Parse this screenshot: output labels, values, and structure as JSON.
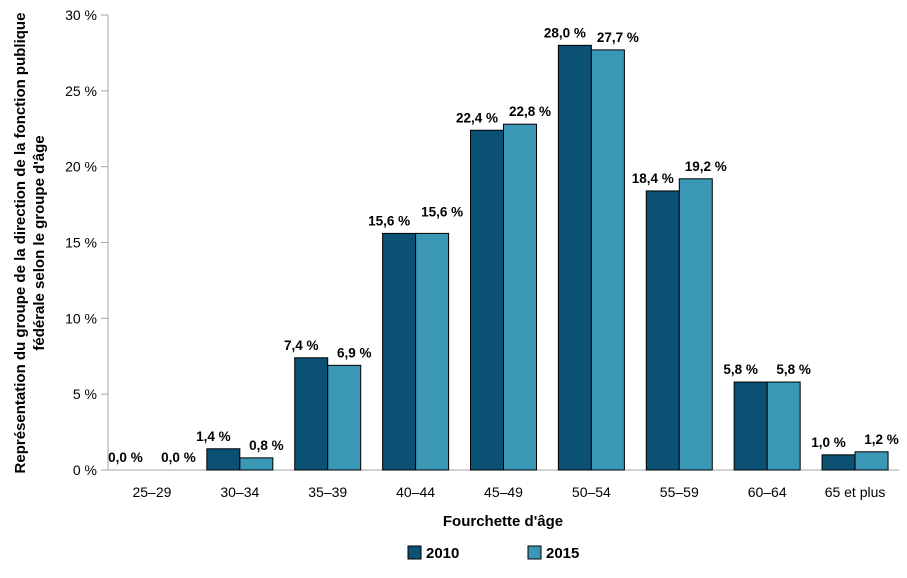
{
  "chart_data": {
    "type": "bar",
    "title": "",
    "categories": [
      "25–29",
      "30–34",
      "35–39",
      "40–44",
      "45–49",
      "50–54",
      "55–59",
      "60–64",
      "65 et plus"
    ],
    "series": [
      {
        "name": "2010",
        "color": "#0A5173",
        "values": [
          0.0,
          1.4,
          7.4,
          15.6,
          22.4,
          28.0,
          18.4,
          5.8,
          1.0
        ],
        "labels": [
          "0,0 %",
          "1,4 %",
          "7,4 %",
          "15,6 %",
          "22,4 %",
          "28,0 %",
          "18,4 %",
          "5,8 %",
          "1,0 %"
        ]
      },
      {
        "name": "2015",
        "color": "#3A97B6",
        "values": [
          0.0,
          0.8,
          6.9,
          15.6,
          22.8,
          27.7,
          19.2,
          5.8,
          1.2
        ],
        "labels": [
          "0,0 %",
          "0,8 %",
          "6,9 %",
          "15,6 %",
          "22,8 %",
          "27,7 %",
          "19,2 %",
          "5,8 %",
          "1,2 %"
        ]
      }
    ],
    "xlabel": "Fourchette d'âge",
    "ylabel_line1": "Représentation du groupe de la direction de la fonction publique",
    "ylabel_line2": "fédérale selon le groupe d'âge",
    "yticks": [
      {
        "value": 0,
        "label": "0 %"
      },
      {
        "value": 5,
        "label": "5 %"
      },
      {
        "value": 10,
        "label": "10 %"
      },
      {
        "value": 15,
        "label": "15 %"
      },
      {
        "value": 20,
        "label": "20 %"
      },
      {
        "value": 25,
        "label": "25 %"
      },
      {
        "value": 30,
        "label": "30 %"
      }
    ],
    "ylim": [
      0,
      30
    ],
    "grid": false,
    "legend_position": "bottom",
    "bar_border_color": "#000000",
    "axis_color": "#A6A6A6",
    "text_color": "#000000"
  }
}
